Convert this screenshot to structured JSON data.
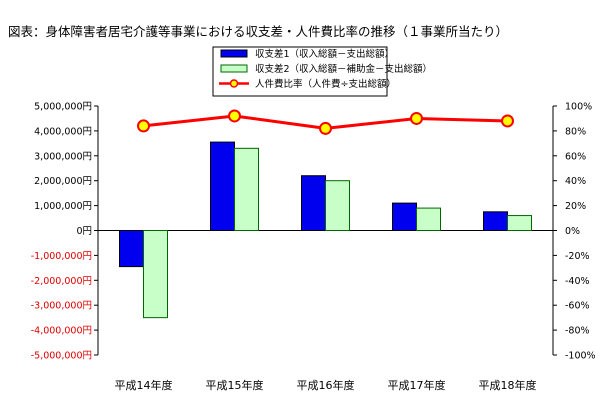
{
  "chart_data": {
    "type": "bar",
    "title": "図表：身体障害者居宅介護等事業における収支差・人件費比率の推移（１事業所当たり）",
    "categories": [
      "平成14年度",
      "平成15年度",
      "平成16年度",
      "平成17年度",
      "平成18年度"
    ],
    "series": [
      {
        "name": "収支差1（収入総額－支出総額）",
        "kind": "bar",
        "axis": "left",
        "fill": "#0000ee",
        "stroke": "#000000",
        "values": [
          -1450000,
          3550000,
          2200000,
          1100000,
          750000
        ]
      },
      {
        "name": "収支差2（収入総額－補助金－支出総額）",
        "kind": "bar",
        "axis": "left",
        "fill": "#c8ffc8",
        "stroke": "#006600",
        "values": [
          -3500000,
          3300000,
          2000000,
          900000,
          600000
        ]
      },
      {
        "name": "人件費比率（人件費÷支出総額）",
        "kind": "line",
        "axis": "right",
        "color": "#ff0000",
        "marker_fill": "#ffff00",
        "values": [
          84,
          92,
          82,
          90,
          88
        ]
      }
    ],
    "y_left": {
      "ylim": [
        -5000000,
        5000000
      ],
      "ticks": [
        5000000,
        4000000,
        3000000,
        2000000,
        1000000,
        0,
        -1000000,
        -2000000,
        -3000000,
        -4000000,
        -5000000
      ],
      "tick_labels": [
        "5,000,000円",
        "4,000,000円",
        "3,000,000円",
        "2,000,000円",
        "1,000,000円",
        "0円",
        "-1,000,000円",
        "-2,000,000円",
        "-3,000,000円",
        "-4,000,000円",
        "-5,000,000円"
      ]
    },
    "y_right": {
      "ylim": [
        -100,
        100
      ],
      "ticks": [
        100,
        80,
        60,
        40,
        20,
        0,
        -20,
        -40,
        -60,
        -80,
        -100
      ],
      "tick_labels": [
        "100%",
        "80%",
        "60%",
        "40%",
        "20%",
        "0%",
        "-20%",
        "-40%",
        "-60%",
        "-80%",
        "-100%"
      ]
    },
    "grid": false,
    "legend_position": "top-center",
    "negative_tick_color": "#e00000"
  }
}
